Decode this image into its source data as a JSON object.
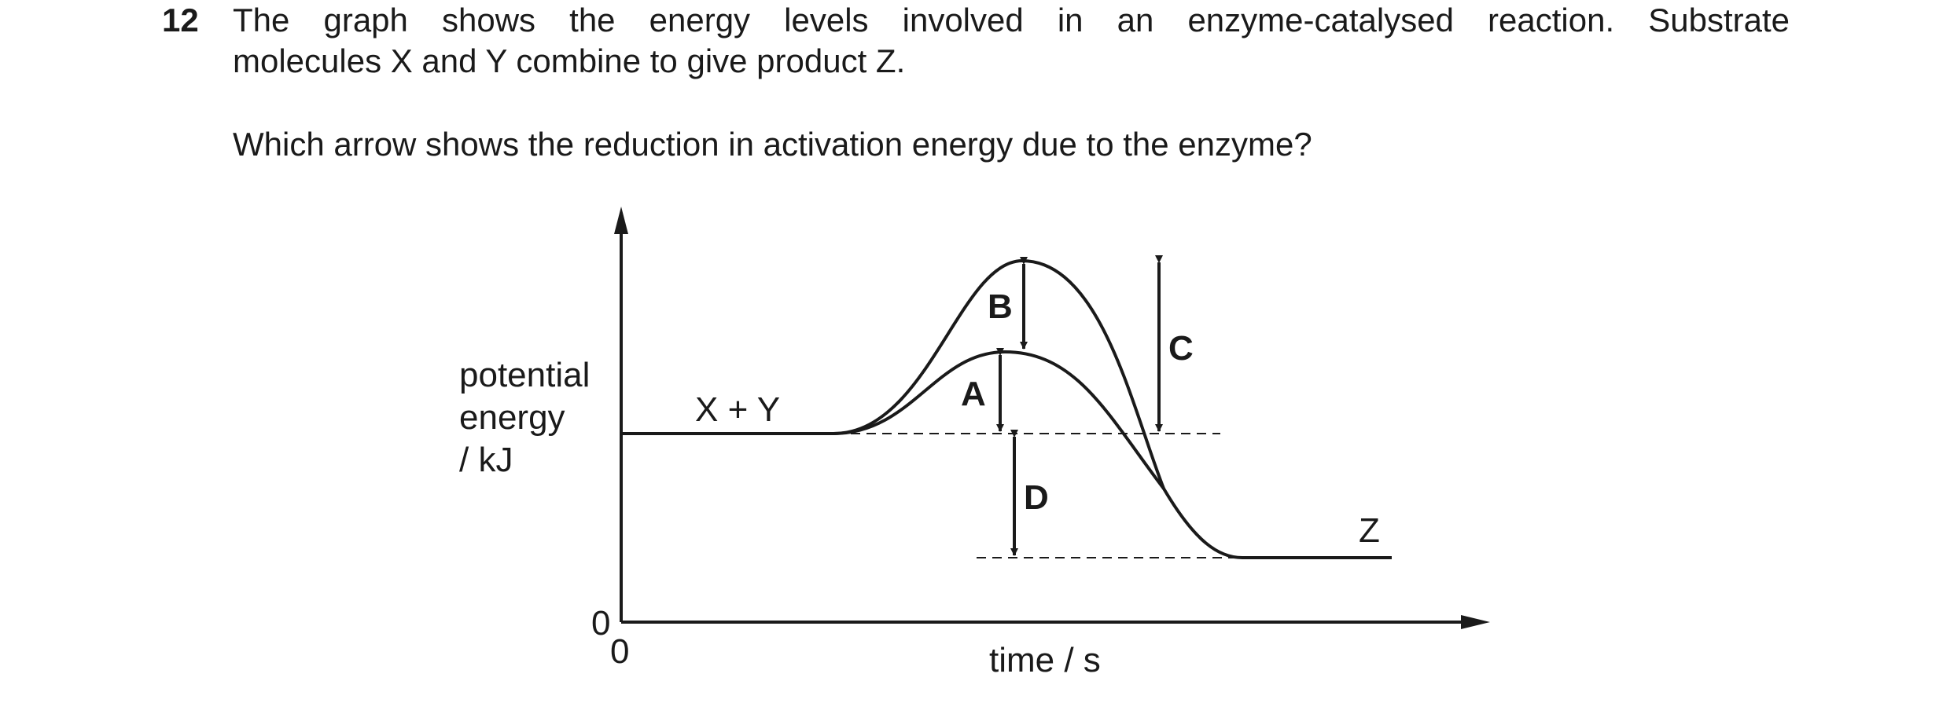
{
  "question": {
    "number": "12",
    "line1": "The graph shows the energy levels involved in an enzyme-catalysed reaction. Substrate",
    "line2": "molecules X and Y combine to give product Z.",
    "prompt": "Which arrow shows the reduction in activation energy due to the enzyme?"
  },
  "diagram": {
    "y_axis_label": [
      "potential",
      "energy",
      "/ kJ"
    ],
    "x_axis_label": "time / s",
    "origin_y": "0",
    "origin_x": "0",
    "reactants_label": "X + Y",
    "product_label": "Z",
    "arrows": {
      "A": "A",
      "B": "B",
      "C": "C",
      "D": "D"
    }
  }
}
